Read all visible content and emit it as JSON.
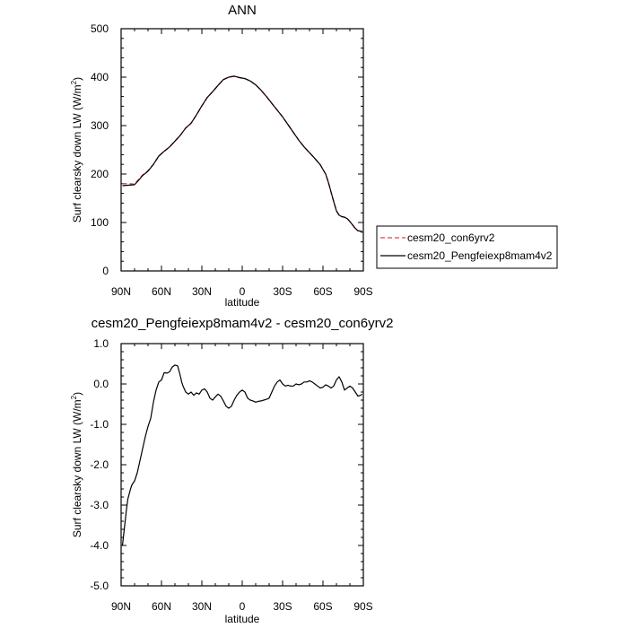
{
  "chart_data": [
    {
      "type": "line",
      "title": "ANN",
      "xlabel": "latitude",
      "ylabel_main": "Surf clearsky down LW (W/m",
      "ylabel_sup": "2",
      "ylabel_end": ")",
      "xlim": [
        90,
        -90
      ],
      "ylim": [
        0,
        500
      ],
      "x_ticks": [
        90,
        60,
        30,
        0,
        -30,
        -60,
        -90
      ],
      "x_tick_labels": [
        "90N",
        "60N",
        "30N",
        "0",
        "30S",
        "60S",
        "90S"
      ],
      "y_ticks": [
        0,
        100,
        200,
        300,
        400,
        500
      ],
      "y_tick_labels": [
        "0",
        "100",
        "200",
        "300",
        "400",
        "500"
      ],
      "legend": {
        "placement": "right"
      },
      "series": [
        {
          "name": "cesm20_con6yrv2",
          "color": "#e8413c",
          "dash": "dashed",
          "x": [
            89,
            84,
            80,
            77,
            74,
            70,
            66,
            62,
            58,
            54,
            50,
            46,
            42,
            38,
            34,
            30,
            26,
            22,
            18,
            14,
            10,
            6,
            2,
            -2,
            -6,
            -10,
            -14,
            -18,
            -22,
            -26,
            -30,
            -34,
            -38,
            -42,
            -46,
            -50,
            -54,
            -58,
            -62,
            -64,
            -66,
            -68,
            -70,
            -72,
            -74,
            -76,
            -78,
            -80,
            -82,
            -84,
            -86,
            -88,
            -89
          ],
          "y": [
            180,
            180,
            179,
            189,
            198,
            207,
            220,
            237,
            247,
            256,
            268,
            280,
            295,
            305,
            322,
            341,
            358,
            370,
            383,
            395,
            400,
            402,
            399,
            397,
            392,
            384,
            373,
            360,
            346,
            332,
            318,
            302,
            286,
            270,
            256,
            244,
            232,
            219,
            200,
            183,
            163,
            143,
            124,
            115,
            112,
            111,
            108,
            102,
            95,
            88,
            83,
            82,
            82
          ]
        },
        {
          "name": "cesm20_Pengfeiexp8mam4v2",
          "color": "#000000",
          "dash": "solid",
          "x": [
            89,
            84,
            80,
            77,
            74,
            70,
            66,
            62,
            58,
            54,
            50,
            46,
            42,
            38,
            34,
            30,
            26,
            22,
            18,
            14,
            10,
            6,
            2,
            -2,
            -6,
            -10,
            -14,
            -18,
            -22,
            -26,
            -30,
            -34,
            -38,
            -42,
            -46,
            -50,
            -54,
            -58,
            -62,
            -64,
            -66,
            -68,
            -70,
            -72,
            -74,
            -76,
            -78,
            -80,
            -82,
            -84,
            -86,
            -88,
            -89
          ],
          "y": [
            176,
            177,
            178,
            187,
            197,
            206,
            220,
            237,
            247,
            256,
            268,
            280,
            295,
            305,
            322,
            341,
            358,
            370,
            383,
            395,
            400,
            402,
            399,
            397,
            392,
            384,
            373,
            360,
            346,
            332,
            318,
            302,
            286,
            270,
            256,
            244,
            232,
            219,
            200,
            183,
            163,
            143,
            124,
            115,
            112,
            111,
            108,
            102,
            95,
            88,
            83,
            82,
            82
          ]
        }
      ]
    },
    {
      "type": "line",
      "title": "cesm20_Pengfeiexp8mam4v2 - cesm20_con6yrv2",
      "xlabel": "latitude",
      "ylabel_main": "Surf clearsky down LW (W/m",
      "ylabel_sup": "2",
      "ylabel_end": ")",
      "xlim": [
        90,
        -90
      ],
      "ylim": [
        -5,
        1
      ],
      "x_ticks": [
        90,
        60,
        30,
        0,
        -30,
        -60,
        -90
      ],
      "x_tick_labels": [
        "90N",
        "60N",
        "30N",
        "0",
        "30S",
        "60S",
        "90S"
      ],
      "y_ticks": [
        1,
        0,
        -1,
        -2,
        -3,
        -4,
        -5
      ],
      "y_tick_labels": [
        "1.0",
        "0.0",
        "-1.0",
        "-2.0",
        "-3.0",
        "-4.0",
        "-5.0"
      ],
      "series": [
        {
          "color": "#000000",
          "dash": "solid",
          "x": [
            89,
            88,
            87,
            86,
            85,
            83,
            82,
            80,
            78,
            76,
            74,
            72,
            70,
            68,
            67,
            66,
            64,
            62,
            60,
            58,
            56,
            54,
            52,
            50,
            48,
            46,
            45,
            44,
            42,
            40,
            38,
            36,
            34,
            32,
            30,
            28,
            26,
            24,
            22,
            20,
            18,
            16,
            14,
            12,
            10,
            8,
            6,
            4,
            2,
            0,
            -2,
            -4,
            -6,
            -8,
            -10,
            -12,
            -14,
            -16,
            -18,
            -20,
            -22,
            -24,
            -26,
            -28,
            -30,
            -32,
            -34,
            -36,
            -38,
            -40,
            -42,
            -44,
            -46,
            -48,
            -50,
            -52,
            -54,
            -56,
            -58,
            -60,
            -62,
            -64,
            -66,
            -68,
            -70,
            -72,
            -74,
            -76,
            -78,
            -80,
            -82,
            -84,
            -86,
            -88,
            -89
          ],
          "y": [
            -4.0,
            -3.7,
            -3.4,
            -3.1,
            -2.85,
            -2.6,
            -2.5,
            -2.4,
            -2.2,
            -1.9,
            -1.6,
            -1.3,
            -1.05,
            -0.85,
            -0.65,
            -0.45,
            -0.15,
            0.05,
            0.1,
            0.28,
            0.27,
            0.3,
            0.42,
            0.47,
            0.45,
            0.2,
            0.05,
            -0.05,
            -0.2,
            -0.25,
            -0.2,
            -0.28,
            -0.22,
            -0.25,
            -0.15,
            -0.12,
            -0.2,
            -0.35,
            -0.4,
            -0.32,
            -0.25,
            -0.3,
            -0.42,
            -0.55,
            -0.6,
            -0.55,
            -0.4,
            -0.28,
            -0.2,
            -0.15,
            -0.2,
            -0.35,
            -0.4,
            -0.42,
            -0.45,
            -0.43,
            -0.42,
            -0.4,
            -0.38,
            -0.35,
            -0.2,
            -0.05,
            0.05,
            0.1,
            0.0,
            -0.05,
            -0.03,
            -0.05,
            -0.05,
            0.0,
            -0.02,
            0.0,
            0.05,
            0.05,
            0.08,
            0.05,
            0.0,
            -0.05,
            -0.1,
            -0.08,
            -0.02,
            -0.05,
            -0.1,
            -0.05,
            0.1,
            0.18,
            0.05,
            -0.15,
            -0.1,
            -0.05,
            -0.1,
            -0.2,
            -0.3,
            -0.28,
            -0.25
          ]
        }
      ]
    }
  ]
}
